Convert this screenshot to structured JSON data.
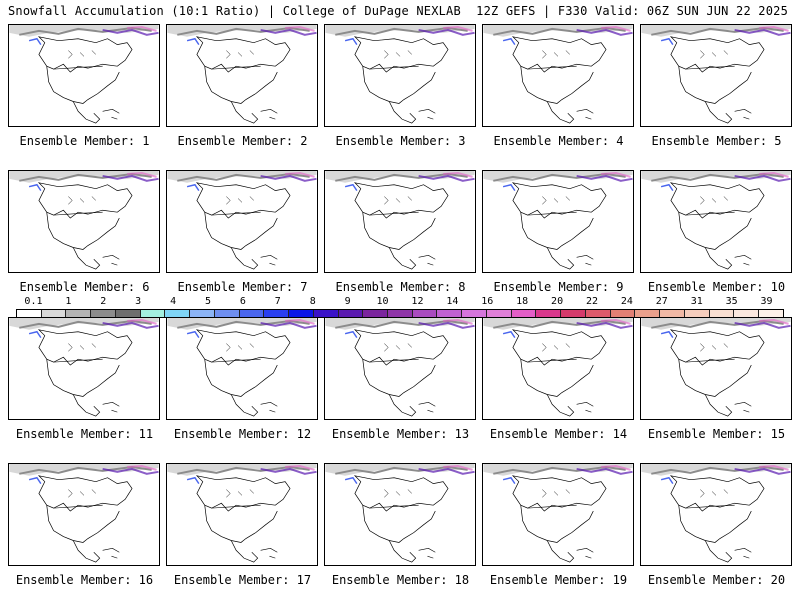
{
  "header": {
    "left": "Snowfall Accumulation (10:1 Ratio) | College of DuPage NEXLAB",
    "right": "12Z GEFS | F330 Valid: 06Z SUN JUN 22 2025"
  },
  "panels": [
    "Ensemble Member: 1",
    "Ensemble Member: 2",
    "Ensemble Member: 3",
    "Ensemble Member: 4",
    "Ensemble Member: 5",
    "Ensemble Member: 6",
    "Ensemble Member: 7",
    "Ensemble Member: 8",
    "Ensemble Member: 9",
    "Ensemble Member: 10",
    "Ensemble Member: 11",
    "Ensemble Member: 12",
    "Ensemble Member: 13",
    "Ensemble Member: 14",
    "Ensemble Member: 15",
    "Ensemble Member: 16",
    "Ensemble Member: 17",
    "Ensemble Member: 18",
    "Ensemble Member: 19",
    "Ensemble Member: 20"
  ],
  "colorscale": {
    "labels": [
      "0.1",
      "1",
      "2",
      "3",
      "4",
      "5",
      "6",
      "7",
      "8",
      "9",
      "10",
      "12",
      "14",
      "16",
      "18",
      "20",
      "22",
      "24",
      "27",
      "31",
      "35",
      "39"
    ],
    "colors": [
      "#ffffff",
      "#d9d9d9",
      "#b3b3b3",
      "#8c8c8c",
      "#6e6e6e",
      "#a3f0e0",
      "#7fd4f5",
      "#8cb4f5",
      "#6f8ff0",
      "#4a66ee",
      "#2a3ff0",
      "#0b16e8",
      "#3a12c8",
      "#5a19b0",
      "#7b259e",
      "#8f34a8",
      "#a94bbf",
      "#c061d2",
      "#d575dc",
      "#e07fd8",
      "#e35ec7",
      "#d9378c",
      "#d43a6b",
      "#dd5a6b",
      "#e28074",
      "#eaa08c",
      "#f0b8a5",
      "#f5cdbd",
      "#f9dfd2",
      "#fbe8df",
      "#fdf1ea"
    ]
  }
}
